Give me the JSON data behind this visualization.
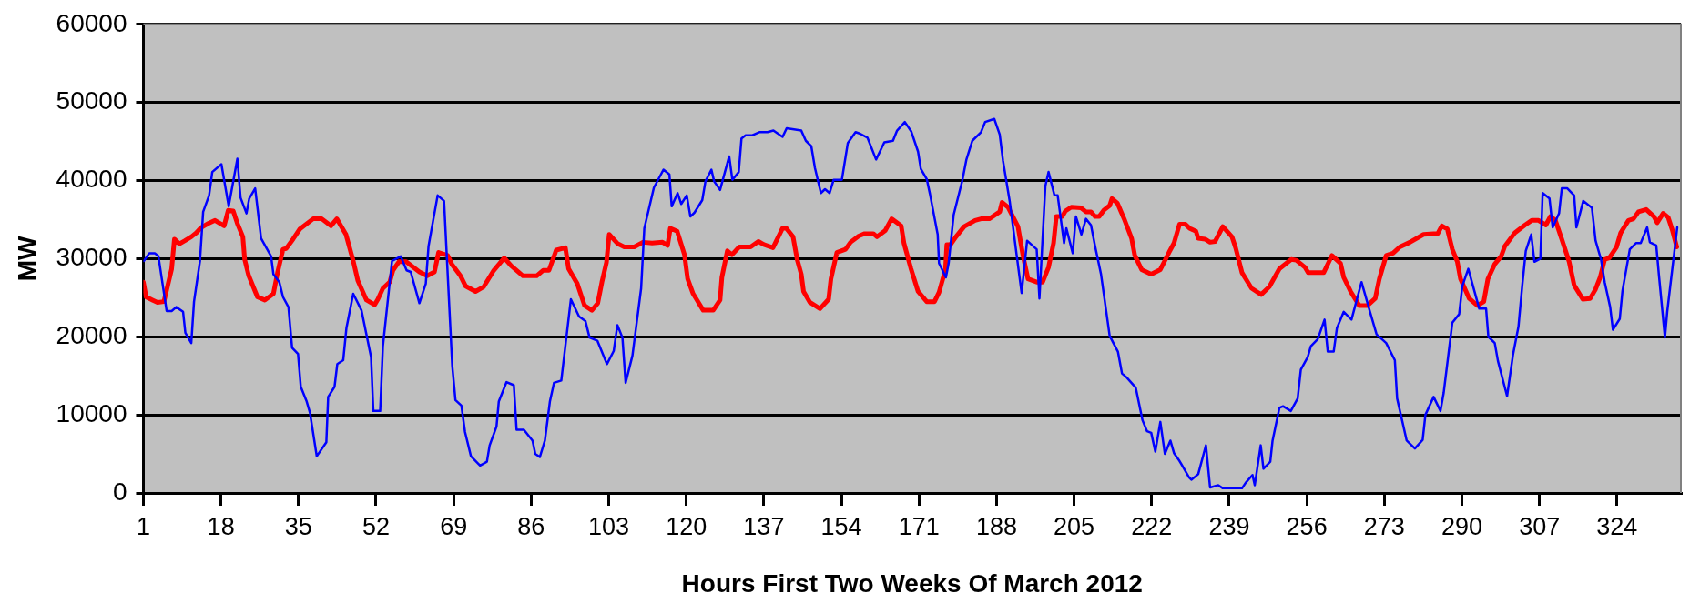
{
  "chart_data": {
    "type": "line",
    "xlabel": "Hours First Two Weeks Of March 2012",
    "ylabel": "MW",
    "xlim": [
      1,
      338
    ],
    "xticks": [
      1,
      18,
      35,
      52,
      69,
      86,
      103,
      120,
      137,
      154,
      171,
      188,
      205,
      222,
      239,
      256,
      273,
      290,
      307,
      324
    ],
    "ylim": [
      0,
      60000
    ],
    "yticks": [
      0,
      10000,
      20000,
      30000,
      40000,
      50000,
      60000
    ],
    "grid": "y",
    "legend": false,
    "marker": "none",
    "line_style": "solid",
    "series": [
      {
        "color": "#0000ff",
        "x": [
          1.1,
          2.3,
          3.5,
          4.3,
          6.1,
          7.2,
          8.2,
          9.7,
          10.2,
          11.5,
          12.1,
          13.4,
          14.1,
          15.4,
          16.1,
          18.1,
          19.7,
          21.6,
          22.3,
          23.6,
          24.2,
          25.5,
          26.8,
          29,
          29.5,
          30.8,
          31.6,
          32.8,
          33.6,
          34.9,
          35.5,
          36.8,
          37.5,
          39,
          41.1,
          41.5,
          42.9,
          43.5,
          44.8,
          45.5,
          47,
          48.8,
          50.9,
          51.4,
          52.9,
          53.5,
          55.5,
          57.4,
          58.7,
          59.6,
          61.5,
          62.9,
          63.5,
          65.5,
          66.9,
          68.7,
          69.4,
          70.7,
          71.5,
          72.8,
          74.8,
          76.3,
          76.9,
          78.4,
          78.9,
          80.6,
          82.2,
          82.8,
          84.4,
          86.3,
          86.9,
          87.9,
          89,
          90.1,
          91,
          92.6,
          94.7,
          96.5,
          97.9,
          98.8,
          100.5,
          102.6,
          104.1,
          104.9,
          106,
          106.7,
          108.2,
          110.1,
          110.8,
          112.9,
          115,
          116.3,
          116.8,
          118.1,
          118.9,
          120.1,
          120.9,
          121.8,
          123.5,
          124.2,
          125.5,
          126.1,
          127.4,
          129.4,
          130.1,
          131.5,
          132.1,
          133,
          134.5,
          136,
          137.8,
          139.1,
          141.1,
          142,
          145.2,
          146.2,
          147.4,
          148.2,
          149.5,
          150.4,
          151.4,
          152.3,
          154.1,
          155.4,
          157.1,
          158.1,
          159.7,
          161.6,
          163.4,
          165.3,
          166.2,
          167.9,
          169.3,
          170.8,
          171.4,
          172.7,
          173.4,
          175.1,
          175.4,
          176.9,
          177.5,
          178.6,
          180.5,
          181.4,
          182.7,
          184.6,
          185.5,
          187.5,
          188.7,
          189.4,
          190.9,
          192.4,
          193.5,
          194.7,
          196.8,
          197.4,
          198.7,
          199.4,
          200.7,
          201.4,
          202.8,
          203.3,
          204.7,
          205.4,
          206.6,
          207.6,
          208.7,
          209.6,
          210.9,
          212.8,
          214.6,
          215.5,
          216.5,
          218.5,
          220,
          221,
          221.9,
          222.8,
          223.9,
          224.9,
          226.1,
          226.9,
          228.1,
          230.2,
          230.7,
          232.2,
          233.9,
          234.8,
          236.6,
          237.6,
          241.8,
          242.6,
          244.1,
          244.6,
          245.9,
          246.5,
          248,
          248.5,
          250,
          250.8,
          252.5,
          254,
          254.7,
          256.2,
          256.9,
          258.4,
          259.9,
          260.6,
          261.9,
          262.6,
          264.1,
          265.8,
          268,
          269.8,
          271.3,
          273.4,
          275.3,
          275.8,
          277.9,
          279.7,
          281.4,
          282,
          283.8,
          285.3,
          286,
          287.9,
          289.4,
          290.1,
          291.4,
          293.8,
          295.3,
          295.8,
          297.2,
          297.9,
          299.9,
          301.2,
          302.4,
          303.2,
          304,
          305.2,
          305.9,
          307.2,
          307.7,
          309.2,
          309.9,
          311.3,
          311.9,
          313.1,
          314.6,
          315.1,
          316.6,
          318.5,
          319.3,
          320.5,
          321.3,
          322.5,
          323.1,
          324.6,
          325.2,
          326.8,
          328.2,
          329.2,
          330.6,
          331.2,
          332.6,
          333.2,
          334.5,
          335,
          337.2
        ],
        "values": [
          29700,
          30700,
          30700,
          30300,
          23300,
          23300,
          23800,
          23200,
          20500,
          19200,
          24500,
          29700,
          36000,
          38100,
          41100,
          42100,
          36700,
          42800,
          37800,
          35800,
          37700,
          39000,
          32600,
          30300,
          28000,
          27000,
          25100,
          23800,
          18600,
          17800,
          13600,
          11700,
          10300,
          4700,
          6500,
          12300,
          13600,
          16500,
          17000,
          21100,
          25500,
          23400,
          17400,
          10500,
          10500,
          18800,
          29700,
          30300,
          28500,
          28300,
          24300,
          26800,
          31600,
          38100,
          37400,
          16300,
          11900,
          11200,
          7800,
          4700,
          3500,
          4000,
          6100,
          8500,
          11700,
          14200,
          13800,
          8100,
          8100,
          6700,
          5000,
          4600,
          6700,
          11700,
          14100,
          14400,
          24800,
          22600,
          22000,
          19900,
          19500,
          16500,
          18200,
          21500,
          19900,
          14100,
          17600,
          26200,
          33900,
          39100,
          41400,
          40800,
          36700,
          38400,
          37000,
          38100,
          35400,
          35900,
          37500,
          39900,
          41400,
          39900,
          38800,
          43100,
          40100,
          41100,
          45400,
          45800,
          45800,
          46200,
          46200,
          46400,
          45600,
          46700,
          46400,
          45100,
          44400,
          41600,
          38400,
          38900,
          38400,
          40100,
          40100,
          44800,
          46200,
          46000,
          45500,
          42700,
          44900,
          45100,
          46400,
          47500,
          46300,
          43700,
          41500,
          40200,
          38300,
          33100,
          29400,
          27600,
          29400,
          35600,
          40000,
          42700,
          45100,
          46200,
          47500,
          47900,
          45900,
          42600,
          37300,
          30500,
          25600,
          32300,
          31200,
          24900,
          39300,
          41100,
          38100,
          38100,
          32000,
          33900,
          30700,
          35400,
          33100,
          35100,
          34300,
          31600,
          28000,
          20100,
          18100,
          15300,
          14800,
          13500,
          9300,
          7900,
          7700,
          5300,
          9100,
          5000,
          6700,
          5100,
          4100,
          2000,
          1700,
          2400,
          6100,
          700,
          1000,
          600,
          600,
          1300,
          2300,
          1000,
          6100,
          3100,
          4000,
          6700,
          10900,
          11100,
          10500,
          12100,
          15800,
          17400,
          18800,
          19700,
          22200,
          18100,
          18100,
          21100,
          23200,
          22200,
          27000,
          23300,
          20300,
          19200,
          17000,
          12100,
          6700,
          5700,
          6800,
          10000,
          12300,
          10500,
          12800,
          21800,
          22900,
          26500,
          28700,
          23600,
          23600,
          20000,
          19200,
          16900,
          12400,
          17700,
          21300,
          26400,
          31000,
          33100,
          29600,
          30000,
          38400,
          37700,
          34000,
          35800,
          39000,
          39000,
          38100,
          34000,
          37400,
          36500,
          32300,
          29900,
          27000,
          23800,
          20900,
          22300,
          25900,
          31200,
          32000,
          32000,
          34000,
          32100,
          31700,
          27800,
          19900,
          23200,
          34000
        ]
      },
      {
        "color": "#ff0000",
        "x": [
          1,
          1.6,
          3.0,
          4.1,
          5.5,
          7.2,
          7.8,
          8.9,
          10.1,
          11.5,
          12.6,
          13.7,
          15.2,
          16.7,
          18.7,
          19.6,
          20.7,
          21.6,
          22.8,
          23.2,
          24.1,
          26,
          27.6,
          29.5,
          30.4,
          31.6,
          32.3,
          33.8,
          35.3,
          38.2,
          40.1,
          42.1,
          43.4,
          45.4,
          47.0,
          48.0,
          49.9,
          51.7,
          52.4,
          53.5,
          55,
          55.7,
          57,
          58.6,
          61.5,
          63.2,
          64.8,
          65.7,
          67.7,
          68.6,
          70.5,
          71.6,
          73.8,
          75.6,
          77.8,
          80.1,
          81.6,
          84.2,
          87.2,
          88.6,
          89.9,
          91.5,
          93.5,
          94.2,
          96.1,
          97.7,
          99.3,
          100.6,
          101.5,
          102.5,
          103.1,
          105,
          106.4,
          108.6,
          110.5,
          112.5,
          114.8,
          115.9,
          116.5,
          118,
          119.6,
          120.3,
          121.5,
          123.7,
          125.9,
          127.4,
          127.8,
          129,
          130,
          131.6,
          134.1,
          135.8,
          137,
          139,
          141.1,
          141.9,
          143.4,
          144.3,
          145.2,
          145.7,
          147.1,
          149.3,
          151.2,
          151.7,
          153,
          154.9,
          156,
          157.8,
          159.1,
          161,
          161.8,
          163.6,
          165,
          167.1,
          167.7,
          169.2,
          170.8,
          172.7,
          174.4,
          175.4,
          176.8,
          177.1,
          177.9,
          179.1,
          180.9,
          183.3,
          184.6,
          186.4,
          188.7,
          189.2,
          190.5,
          192.7,
          193.8,
          194.9,
          196.8,
          198.1,
          199.4,
          200.5,
          201.1,
          202.4,
          203.1,
          204.4,
          206.5,
          207.6,
          208.7,
          209.6,
          210.5,
          211.5,
          212.8,
          213.3,
          214.5,
          216.1,
          217.6,
          218.3,
          219.8,
          221.9,
          223.9,
          225.8,
          226.9,
          228.1,
          229.4,
          230.3,
          231.7,
          232.2,
          233.7,
          234.8,
          235.9,
          237.6,
          239.6,
          240.4,
          241.8,
          243.9,
          246,
          247.8,
          250,
          252.6,
          253.7,
          255.6,
          256.3,
          259.7,
          261.5,
          263.4,
          264.1,
          265.6,
          267.5,
          269.3,
          271,
          271.9,
          273.4,
          274.9,
          276.4,
          278.6,
          281.6,
          283.8,
          284.7,
          285.6,
          286.8,
          287.9,
          289,
          289.7,
          291.6,
          293.4,
          294.8,
          295.7,
          297.2,
          298.6,
          299.4,
          301.6,
          303.8,
          305.3,
          306.8,
          308.4,
          309.4,
          310.5,
          312,
          313.5,
          314.6,
          316.5,
          318.1,
          319.3,
          320.3,
          321.3,
          322.3,
          323.9,
          324.8,
          326.5,
          327.6,
          328.7,
          330.4,
          332.1,
          332.8,
          334.1,
          335.2,
          336.1,
          337.1
        ],
        "values": [
          27000,
          25100,
          24700,
          24400,
          24500,
          28700,
          32500,
          31900,
          32300,
          32800,
          33300,
          34000,
          34500,
          34900,
          34200,
          36200,
          36100,
          34500,
          32800,
          29900,
          27800,
          25100,
          24700,
          25500,
          28200,
          31200,
          31300,
          32500,
          33800,
          35100,
          35100,
          34200,
          35100,
          33100,
          29700,
          27200,
          24700,
          24100,
          24800,
          26200,
          27000,
          28500,
          29600,
          29600,
          28300,
          27800,
          28300,
          30800,
          30400,
          29300,
          27800,
          26500,
          25800,
          26400,
          28500,
          30100,
          29100,
          27800,
          27800,
          28500,
          28500,
          31100,
          31400,
          28700,
          26800,
          24000,
          23400,
          24300,
          27000,
          29500,
          33100,
          31900,
          31500,
          31500,
          32100,
          32000,
          32100,
          31700,
          33900,
          33500,
          30500,
          27400,
          25500,
          23400,
          23400,
          24700,
          27600,
          31000,
          30500,
          31500,
          31500,
          32200,
          31800,
          31400,
          33900,
          33900,
          32800,
          29900,
          28000,
          25800,
          24400,
          23600,
          24800,
          27400,
          30800,
          31200,
          32100,
          32900,
          33200,
          33200,
          32800,
          33600,
          35100,
          34200,
          32000,
          28800,
          25800,
          24500,
          24500,
          25700,
          28600,
          31800,
          31800,
          32800,
          34100,
          34900,
          35100,
          35100,
          36000,
          37200,
          36600,
          34100,
          30400,
          27400,
          27000,
          27000,
          28900,
          32000,
          35400,
          35400,
          36100,
          36600,
          36500,
          36000,
          36000,
          35400,
          35400,
          36200,
          36800,
          37700,
          37100,
          34900,
          32600,
          30400,
          28600,
          28000,
          28600,
          30800,
          32000,
          34400,
          34400,
          33900,
          33500,
          32600,
          32500,
          32100,
          32200,
          34100,
          32800,
          31400,
          28200,
          26200,
          25400,
          26400,
          28700,
          29900,
          29800,
          28900,
          28200,
          28200,
          30400,
          29400,
          27600,
          25800,
          24000,
          24000,
          24900,
          27400,
          30400,
          30700,
          31500,
          32100,
          33100,
          33200,
          33200,
          34200,
          33800,
          31200,
          29600,
          27400,
          24900,
          24000,
          24500,
          27400,
          29300,
          30300,
          31600,
          33300,
          34300,
          34900,
          34900,
          34300,
          35400,
          34900,
          32300,
          29600,
          26600,
          24800,
          24900,
          26100,
          27600,
          29900,
          30100,
          31500,
          33300,
          34900,
          35100,
          36000,
          36300,
          35400,
          34600,
          35800,
          35300,
          33700,
          31500
        ]
      }
    ]
  }
}
